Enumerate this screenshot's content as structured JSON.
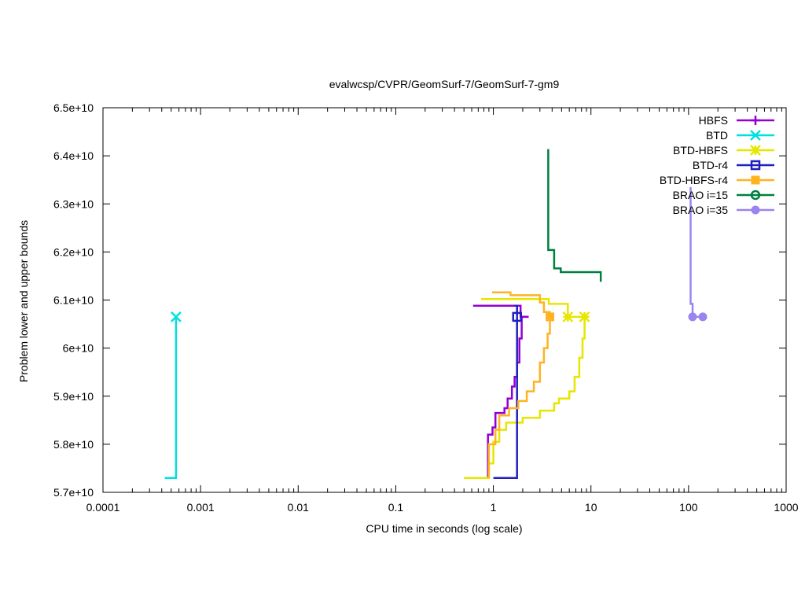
{
  "chart_data": {
    "type": "line",
    "title": "evalwcsp/CVPR/GeomSurf-7/GeomSurf-7-gm9",
    "xlabel": "CPU time in seconds (log scale)",
    "ylabel": "Problem lower and upper bounds",
    "xscale": "log",
    "xlim": [
      0.0001,
      1000
    ],
    "ylim": [
      57000000000.0,
      65000000000.0
    ],
    "xticks": [
      {
        "value": 0.0001,
        "label": "0.0001"
      },
      {
        "value": 0.001,
        "label": "0.001"
      },
      {
        "value": 0.01,
        "label": "0.01"
      },
      {
        "value": 0.1,
        "label": "0.1"
      },
      {
        "value": 1,
        "label": "1"
      },
      {
        "value": 10,
        "label": "10"
      },
      {
        "value": 100,
        "label": "100"
      },
      {
        "value": 1000,
        "label": "1000"
      }
    ],
    "yticks": [
      {
        "value": 57000000000.0,
        "label": "5.7e+10"
      },
      {
        "value": 58000000000.0,
        "label": "5.8e+10"
      },
      {
        "value": 59000000000.0,
        "label": "5.9e+10"
      },
      {
        "value": 60000000000.0,
        "label": "6e+10"
      },
      {
        "value": 61000000000.0,
        "label": "6.1e+10"
      },
      {
        "value": 62000000000.0,
        "label": "6.2e+10"
      },
      {
        "value": 63000000000.0,
        "label": "6.3e+10"
      },
      {
        "value": 64000000000.0,
        "label": "6.4e+10"
      },
      {
        "value": 65000000000.0,
        "label": "6.5e+10"
      }
    ],
    "legend_position": "top-right",
    "series": [
      {
        "name": "HBFS",
        "color": "#9400d3",
        "marker": "plus",
        "lines": [
          [
            [
              0.88,
              57300000000.0
            ],
            [
              0.88,
              58200000000.0
            ],
            [
              0.98,
              58200000000.0
            ],
            [
              0.98,
              58350000000.0
            ],
            [
              1.05,
              58350000000.0
            ],
            [
              1.05,
              58650000000.0
            ],
            [
              1.3,
              58650000000.0
            ],
            [
              1.3,
              58750000000.0
            ],
            [
              1.4,
              58750000000.0
            ],
            [
              1.4,
              58950000000.0
            ],
            [
              1.55,
              58950000000.0
            ],
            [
              1.55,
              59200000000.0
            ],
            [
              1.65,
              59200000000.0
            ],
            [
              1.65,
              59400000000.0
            ],
            [
              1.75,
              59400000000.0
            ],
            [
              1.75,
              59700000000.0
            ],
            [
              1.85,
              59700000000.0
            ],
            [
              1.85,
              60200000000.0
            ],
            [
              1.95,
              60200000000.0
            ],
            [
              1.95,
              60650000000.0
            ],
            [
              2.3,
              60650000000.0
            ]
          ],
          [
            [
              0.62,
              60880000000.0
            ],
            [
              1.9,
              60880000000.0
            ],
            [
              1.9,
              60650000000.0
            ],
            [
              2.3,
              60650000000.0
            ]
          ]
        ],
        "markers": []
      },
      {
        "name": "BTD",
        "color": "#00e0e0",
        "marker": "x",
        "lines": [
          [
            [
              0.00043,
              57300000000.0
            ],
            [
              0.00056,
              57300000000.0
            ],
            [
              0.00056,
              60650000000.0
            ]
          ],
          [
            [
              0.00056,
              60650000000.0
            ]
          ]
        ],
        "markers": [
          [
            0.00056,
            60650000000.0
          ]
        ]
      },
      {
        "name": "BTD-HBFS",
        "color": "#e6e600",
        "marker": "star",
        "lines": [
          [
            [
              0.5,
              57300000000.0
            ],
            [
              0.9,
              57300000000.0
            ],
            [
              0.9,
              57600000000.0
            ],
            [
              1.0,
              57600000000.0
            ],
            [
              1.0,
              58050000000.0
            ],
            [
              1.15,
              58050000000.0
            ],
            [
              1.15,
              58300000000.0
            ],
            [
              1.35,
              58300000000.0
            ],
            [
              1.35,
              58450000000.0
            ],
            [
              2.0,
              58450000000.0
            ],
            [
              2.0,
              58550000000.0
            ],
            [
              3.0,
              58550000000.0
            ],
            [
              3.0,
              58700000000.0
            ],
            [
              4.2,
              58700000000.0
            ],
            [
              4.2,
              58850000000.0
            ],
            [
              4.7,
              58850000000.0
            ],
            [
              4.7,
              58950000000.0
            ],
            [
              6.0,
              58950000000.0
            ],
            [
              6.0,
              59100000000.0
            ],
            [
              6.8,
              59100000000.0
            ],
            [
              6.8,
              59400000000.0
            ],
            [
              7.6,
              59400000000.0
            ],
            [
              7.6,
              59800000000.0
            ],
            [
              8.2,
              59800000000.0
            ],
            [
              8.2,
              60200000000.0
            ],
            [
              8.6,
              60200000000.0
            ],
            [
              8.6,
              60650000000.0
            ]
          ],
          [
            [
              0.75,
              61020000000.0
            ],
            [
              3.7,
              61020000000.0
            ],
            [
              3.7,
              60920000000.0
            ],
            [
              5.8,
              60920000000.0
            ],
            [
              5.8,
              60650000000.0
            ],
            [
              8.6,
              60650000000.0
            ]
          ]
        ],
        "markers": [
          [
            5.8,
            60650000000.0
          ],
          [
            8.6,
            60650000000.0
          ]
        ]
      },
      {
        "name": "BTD-r4",
        "color": "#1f1fbf",
        "marker": "square-open",
        "lines": [
          [
            [
              1.0,
              57300000000.0
            ],
            [
              1.75,
              57300000000.0
            ],
            [
              1.75,
              60650000000.0
            ]
          ],
          [
            [
              1.65,
              60880000000.0
            ],
            [
              1.75,
              60880000000.0
            ],
            [
              1.75,
              60650000000.0
            ]
          ]
        ],
        "markers": [
          [
            1.75,
            60650000000.0
          ]
        ]
      },
      {
        "name": "BTD-HBFS-r4",
        "color": "#ffb320",
        "marker": "square-filled",
        "lines": [
          [
            [
              0.9,
              57300000000.0
            ],
            [
              0.9,
              58000000000.0
            ],
            [
              1.05,
              58000000000.0
            ],
            [
              1.05,
              58300000000.0
            ],
            [
              1.15,
              58300000000.0
            ],
            [
              1.15,
              58600000000.0
            ],
            [
              1.45,
              58600000000.0
            ],
            [
              1.45,
              58750000000.0
            ],
            [
              1.8,
              58750000000.0
            ],
            [
              1.8,
              58900000000.0
            ],
            [
              2.2,
              58900000000.0
            ],
            [
              2.2,
              59100000000.0
            ],
            [
              2.6,
              59100000000.0
            ],
            [
              2.6,
              59300000000.0
            ],
            [
              3.0,
              59300000000.0
            ],
            [
              3.0,
              59700000000.0
            ],
            [
              3.3,
              59700000000.0
            ],
            [
              3.3,
              60000000000.0
            ],
            [
              3.6,
              60000000000.0
            ],
            [
              3.6,
              60300000000.0
            ],
            [
              3.8,
              60300000000.0
            ],
            [
              3.8,
              60650000000.0
            ]
          ],
          [
            [
              0.97,
              61160000000.0
            ],
            [
              1.5,
              61160000000.0
            ],
            [
              1.5,
              61100000000.0
            ],
            [
              3.0,
              61100000000.0
            ],
            [
              3.0,
              60950000000.0
            ],
            [
              3.3,
              60950000000.0
            ],
            [
              3.3,
              60750000000.0
            ],
            [
              3.8,
              60750000000.0
            ],
            [
              3.8,
              60650000000.0
            ]
          ]
        ],
        "markers": [
          [
            3.8,
            60650000000.0
          ]
        ]
      },
      {
        "name": "BRAO i=15",
        "color": "#007f3f",
        "marker": "circle-open",
        "lines": [
          [
            [
              3.65,
              64140000000.0
            ],
            [
              3.65,
              62040000000.0
            ],
            [
              4.2,
              62040000000.0
            ],
            [
              4.2,
              61660000000.0
            ],
            [
              4.9,
              61660000000.0
            ],
            [
              4.9,
              61580000000.0
            ],
            [
              12.6,
              61580000000.0
            ],
            [
              12.6,
              61380000000.0
            ]
          ]
        ],
        "markers": []
      },
      {
        "name": "BRAO i=35",
        "color": "#9a84f0",
        "marker": "circle-filled",
        "lines": [
          [
            [
              105,
              63350000000.0
            ],
            [
              105,
              60920000000.0
            ],
            [
              110,
              60920000000.0
            ],
            [
              110,
              60650000000.0
            ],
            [
              140,
              60650000000.0
            ]
          ]
        ],
        "markers": [
          [
            110,
            60650000000.0
          ],
          [
            140,
            60650000000.0
          ]
        ]
      }
    ]
  }
}
